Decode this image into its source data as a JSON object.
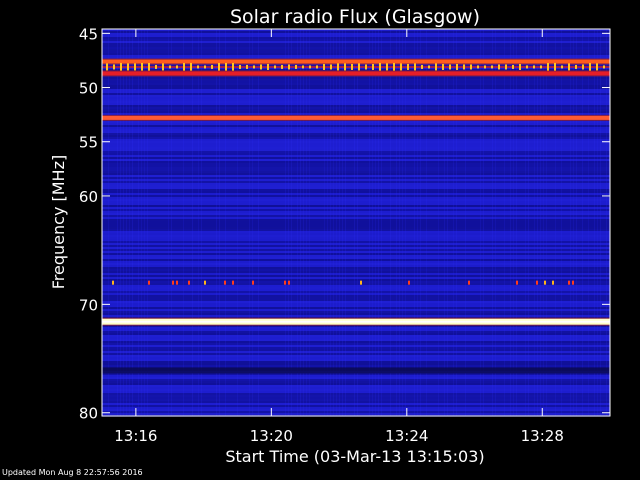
{
  "chart_data": {
    "type": "heatmap",
    "title": "Solar radio Flux (Glasgow)",
    "xlabel": "Start Time (03-Mar-13 13:15:03)",
    "ylabel": "Frequency [MHz]",
    "x_ticks": [
      "13:16",
      "13:20",
      "13:24",
      "13:28"
    ],
    "x_tick_values_min": [
      1.0,
      5.0,
      9.0,
      13.0
    ],
    "x_range_min": [
      0.0,
      15.0
    ],
    "y_ticks": [
      "45",
      "50",
      "55",
      "60",
      "70",
      "80"
    ],
    "y_tick_values": [
      45,
      50,
      55,
      60,
      70,
      80
    ],
    "y_range": [
      44.6,
      80.3
    ],
    "background": {
      "base": "#1a1ac8",
      "dark": "#0a0a78"
    },
    "bands": [
      {
        "center_mhz": 47.6,
        "intensity": "high",
        "color": "#ff5a1e"
      },
      {
        "center_mhz": 48.1,
        "intensity": "pulsed",
        "color": "#ffc81e"
      },
      {
        "center_mhz": 48.7,
        "intensity": "high",
        "color": "#e61e28"
      },
      {
        "center_mhz": 52.8,
        "intensity": "very-high",
        "color": "#ff5a32"
      },
      {
        "center_mhz": 71.6,
        "intensity": "saturated",
        "color": "#ffffc8"
      },
      {
        "center_mhz": 76.1,
        "intensity": "low",
        "color": "#0a0a50"
      },
      {
        "center_mhz": 68.0,
        "intensity": "sporadic",
        "color": "#ff3c1e"
      }
    ],
    "grid": false,
    "legend": "none"
  },
  "footer": "Updated Mon Aug  8 22:57:56 2016"
}
